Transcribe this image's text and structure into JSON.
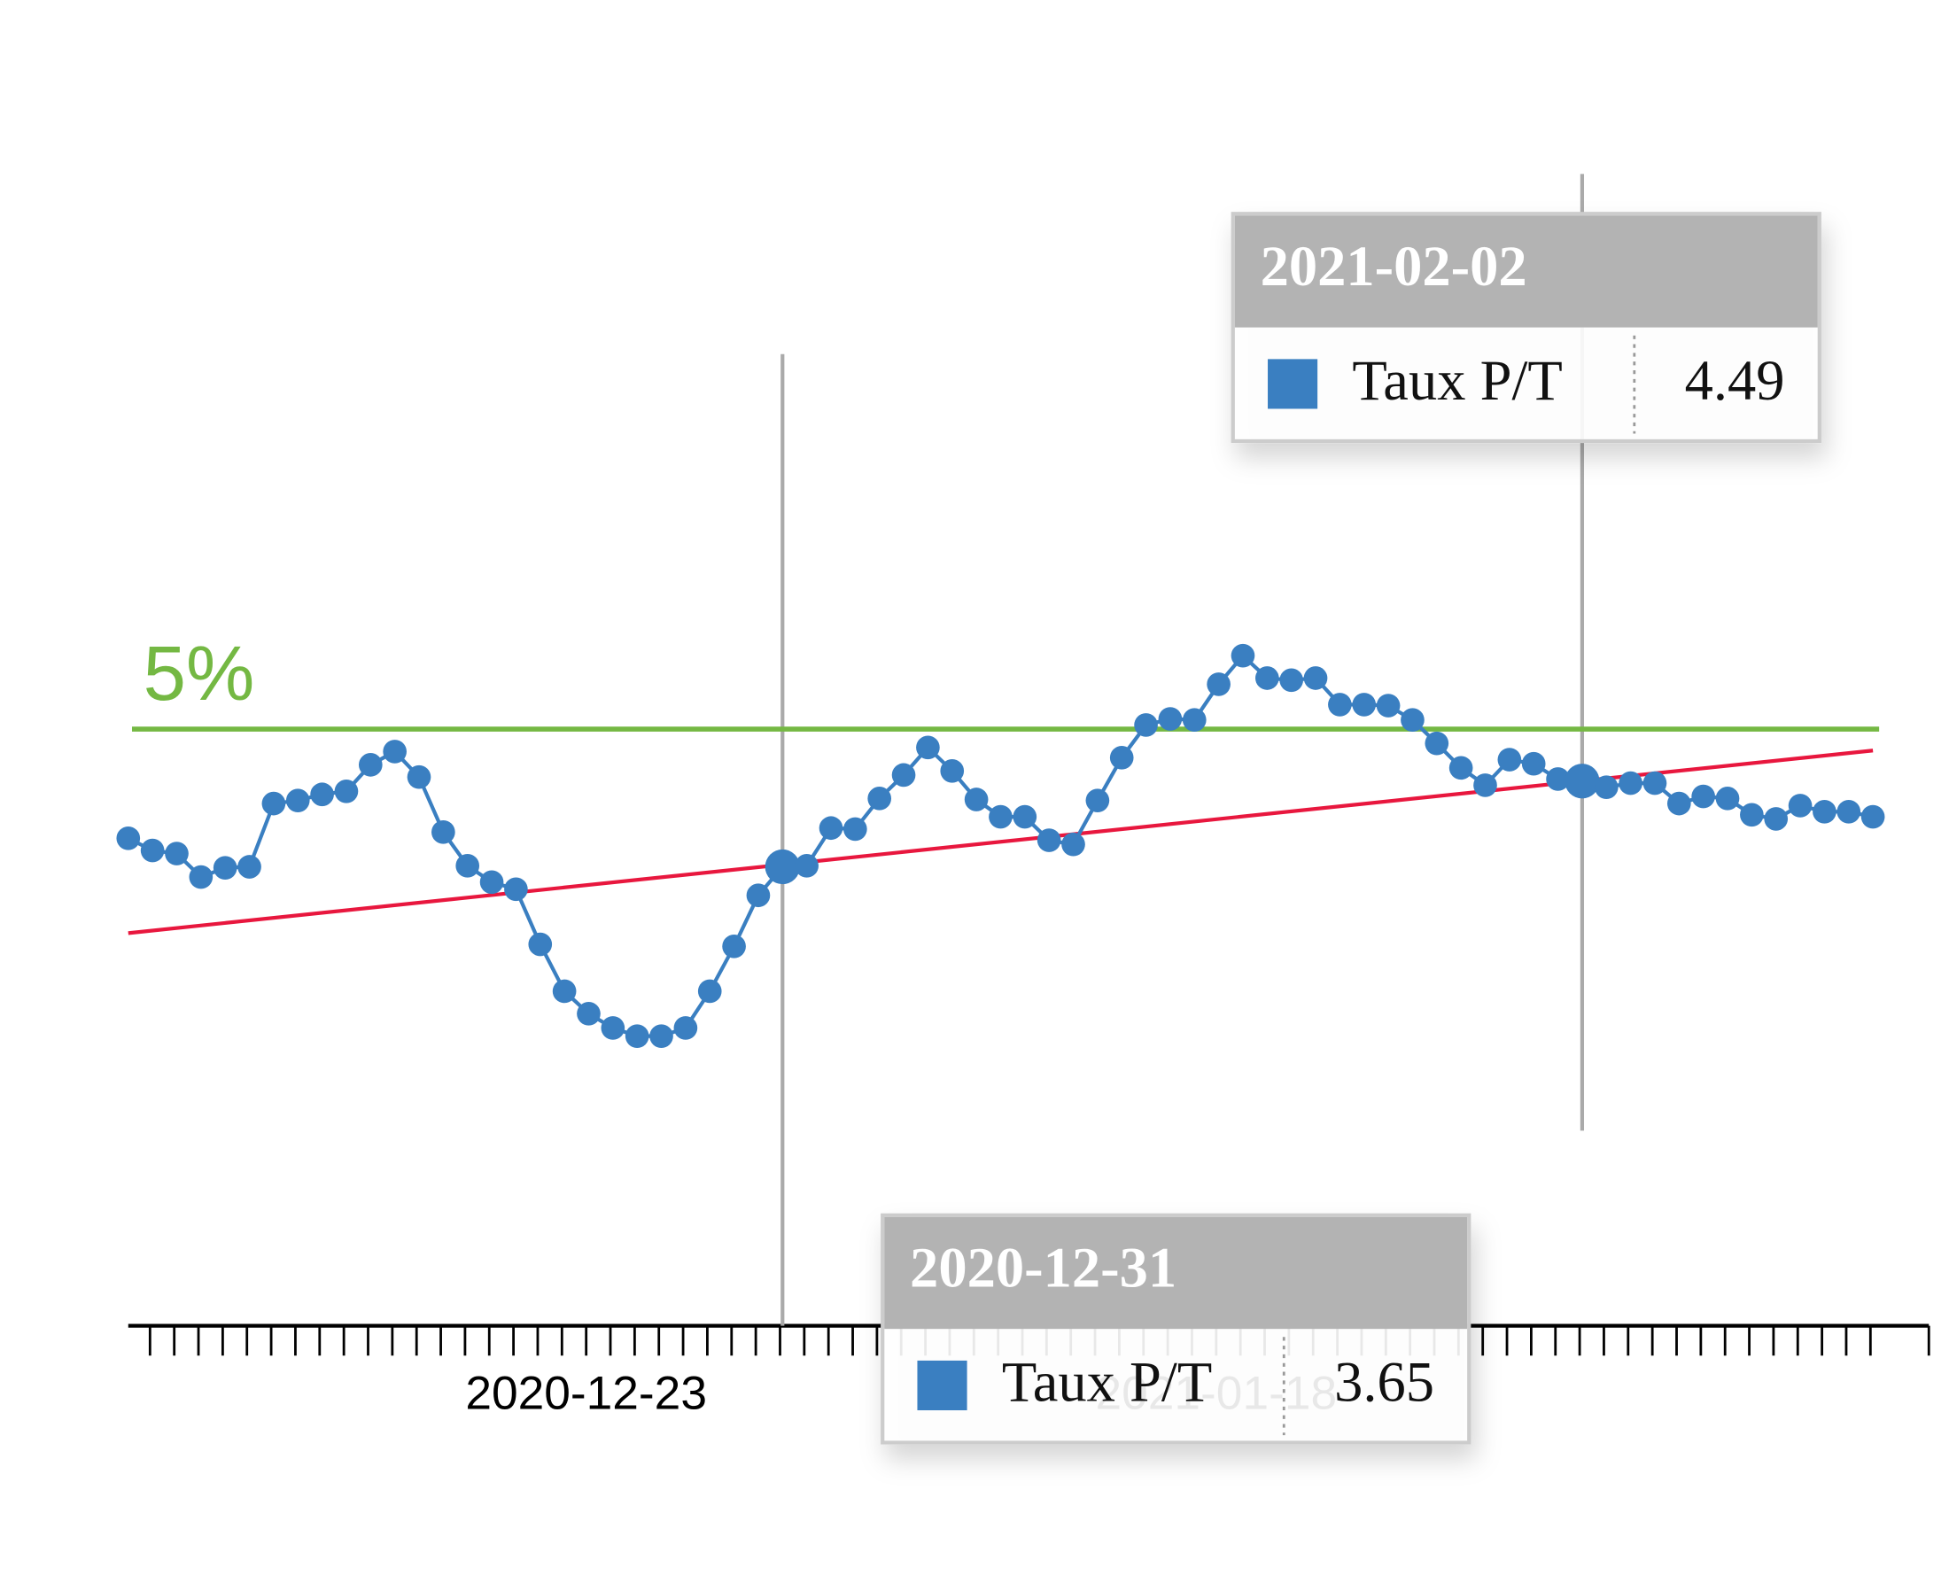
{
  "chart_data": {
    "type": "line",
    "x": [
      "2020-12-04",
      "2020-12-05",
      "2020-12-06",
      "2020-12-07",
      "2020-12-08",
      "2020-12-09",
      "2020-12-10",
      "2020-12-11",
      "2020-12-12",
      "2020-12-13",
      "2020-12-14",
      "2020-12-15",
      "2020-12-16",
      "2020-12-17",
      "2020-12-18",
      "2020-12-19",
      "2020-12-20",
      "2020-12-21",
      "2020-12-22",
      "2020-12-23",
      "2020-12-24",
      "2020-12-25",
      "2020-12-26",
      "2020-12-27",
      "2020-12-28",
      "2020-12-29",
      "2020-12-30",
      "2020-12-31",
      "2021-01-01",
      "2021-01-02",
      "2021-01-03",
      "2021-01-04",
      "2021-01-05",
      "2021-01-06",
      "2021-01-07",
      "2021-01-08",
      "2021-01-09",
      "2021-01-10",
      "2021-01-11",
      "2021-01-12",
      "2021-01-13",
      "2021-01-14",
      "2021-01-15",
      "2021-01-16",
      "2021-01-17",
      "2021-01-18",
      "2021-01-19",
      "2021-01-20",
      "2021-01-21",
      "2021-01-22",
      "2021-01-23",
      "2021-01-24",
      "2021-01-25",
      "2021-01-26",
      "2021-01-27",
      "2021-01-28",
      "2021-01-29",
      "2021-01-30",
      "2021-01-31",
      "2021-02-01",
      "2021-02-02",
      "2021-02-03",
      "2021-02-04",
      "2021-02-05",
      "2021-02-06",
      "2021-02-07",
      "2021-02-08",
      "2021-02-09",
      "2021-02-10",
      "2021-02-11",
      "2021-02-12",
      "2021-02-13",
      "2021-02-14"
    ],
    "series": [
      {
        "name": "Taux P/T",
        "color": "#3a7fc1",
        "values": [
          3.93,
          3.81,
          3.78,
          3.55,
          3.64,
          3.65,
          4.27,
          4.3,
          4.36,
          4.39,
          4.65,
          4.78,
          4.53,
          3.99,
          3.66,
          3.5,
          3.43,
          2.89,
          2.43,
          2.21,
          2.07,
          1.99,
          1.99,
          2.07,
          2.43,
          2.87,
          3.37,
          3.65,
          3.66,
          4.03,
          4.02,
          4.32,
          4.55,
          4.82,
          4.59,
          4.31,
          4.14,
          4.14,
          3.91,
          3.87,
          4.3,
          4.72,
          5.04,
          5.1,
          5.09,
          5.44,
          5.72,
          5.5,
          5.48,
          5.5,
          5.24,
          5.24,
          5.23,
          5.09,
          4.86,
          4.62,
          4.45,
          4.7,
          4.66,
          4.51,
          4.49,
          4.43,
          4.47,
          4.47,
          4.27,
          4.34,
          4.32,
          4.16,
          4.12,
          4.25,
          4.19,
          4.19,
          4.14
        ]
      }
    ],
    "trend": {
      "color": "#e8173e",
      "values": [
        3.0,
        4.79
      ]
    },
    "reference_line": {
      "value": 5,
      "label": "5%",
      "color": "#74b843"
    },
    "ylim": [
      -0.85,
      10.93
    ],
    "xticks": [
      {
        "value": "2020-12-23",
        "label": "2020-12-23"
      },
      {
        "value": "2021-01-18",
        "label": "2021-01-18"
      }
    ],
    "tooltips": [
      "2021-02-02",
      "2020-12-31"
    ]
  }
}
